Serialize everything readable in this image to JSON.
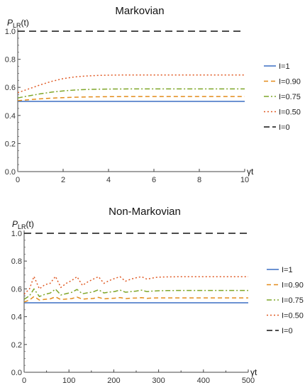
{
  "chart_data": [
    {
      "type": "line",
      "title": "Markovian",
      "ylabel": "P",
      "ylabel_sub": "LR",
      "ylabel_suffix": "(t)",
      "xlabel": "γt",
      "xlim": [
        0,
        10
      ],
      "ylim": [
        0,
        1.0
      ],
      "xticks": [
        0,
        2,
        4,
        6,
        8,
        10
      ],
      "xtick_labels": [
        "0",
        "2",
        "4",
        "6",
        "8",
        "10"
      ],
      "yticks": [
        0,
        0.2,
        0.4,
        0.6,
        0.8,
        1.0
      ],
      "ytick_labels": [
        "0.0",
        "0.2",
        "0.4",
        "0.6",
        "0.8",
        "1.0"
      ],
      "legend": "right",
      "series": [
        {
          "name": "I=1",
          "color": "#3b6fc4",
          "dash": "solid",
          "x": [
            0,
            1,
            2,
            3,
            4,
            5,
            6,
            7,
            8,
            9,
            10
          ],
          "values": [
            0.5,
            0.5,
            0.5,
            0.5,
            0.5,
            0.5,
            0.5,
            0.5,
            0.5,
            0.5,
            0.5
          ]
        },
        {
          "name": "I=0.90",
          "color": "#e38c1b",
          "dash": "dash",
          "x": [
            0,
            0.5,
            1,
            1.5,
            2,
            2.5,
            3,
            3.5,
            4,
            5,
            6,
            7,
            8,
            9,
            10
          ],
          "values": [
            0.505,
            0.512,
            0.518,
            0.523,
            0.527,
            0.53,
            0.532,
            0.533,
            0.534,
            0.535,
            0.535,
            0.535,
            0.535,
            0.535,
            0.535
          ]
        },
        {
          "name": "I=0.75",
          "color": "#7fa62a",
          "dash": "dashdot",
          "x": [
            0,
            0.5,
            1,
            1.5,
            2,
            2.5,
            3,
            3.5,
            4,
            5,
            6,
            7,
            8,
            9,
            10
          ],
          "values": [
            0.525,
            0.54,
            0.554,
            0.566,
            0.575,
            0.581,
            0.585,
            0.587,
            0.588,
            0.589,
            0.589,
            0.589,
            0.589,
            0.589,
            0.589
          ]
        },
        {
          "name": "I=0.50",
          "color": "#e05a24",
          "dash": "dot",
          "x": [
            0,
            0.5,
            1,
            1.5,
            2,
            2.5,
            3,
            3.5,
            4,
            4.5,
            5,
            6,
            7,
            8,
            9,
            10
          ],
          "values": [
            0.562,
            0.59,
            0.618,
            0.643,
            0.662,
            0.674,
            0.681,
            0.685,
            0.687,
            0.688,
            0.688,
            0.688,
            0.688,
            0.688,
            0.688,
            0.688
          ]
        },
        {
          "name": "I=0",
          "color": "#111111",
          "dash": "longdash",
          "x": [
            0,
            10
          ],
          "values": [
            1.0,
            1.0
          ]
        }
      ]
    },
    {
      "type": "line",
      "title": "Non-Markovian",
      "ylabel": "P",
      "ylabel_sub": "LR",
      "ylabel_suffix": "(t)",
      "xlabel": "γt",
      "xlim": [
        0,
        500
      ],
      "ylim": [
        0,
        1.0
      ],
      "xticks": [
        0,
        50,
        100,
        150,
        200,
        250,
        300,
        350,
        400,
        450,
        500
      ],
      "xtick_labels": [
        "0",
        "",
        "100",
        "",
        "200",
        "",
        "300",
        "",
        "400",
        "",
        "500"
      ],
      "yticks": [
        0,
        0.2,
        0.4,
        0.6,
        0.8,
        1.0
      ],
      "ytick_labels": [
        "0.0",
        "0.2",
        "0.4",
        "0.6",
        "0.8",
        "1.0"
      ],
      "legend": "right",
      "series": [
        {
          "name": "I=1",
          "color": "#3b6fc4",
          "dash": "solid",
          "x": [
            0,
            100,
            200,
            300,
            400,
            500
          ],
          "values": [
            0.5,
            0.5,
            0.5,
            0.5,
            0.5,
            0.5
          ]
        },
        {
          "name": "I=0.90",
          "color": "#e38c1b",
          "dash": "dash",
          "x": [
            0,
            12,
            22,
            34,
            46,
            58,
            70,
            82,
            94,
            106,
            118,
            130,
            142,
            154,
            166,
            178,
            190,
            202,
            214,
            226,
            238,
            250,
            262,
            274,
            286,
            298,
            320,
            350,
            380,
            410,
            440,
            470,
            500
          ],
          "values": [
            0.505,
            0.52,
            0.545,
            0.52,
            0.525,
            0.528,
            0.543,
            0.523,
            0.527,
            0.53,
            0.541,
            0.526,
            0.529,
            0.531,
            0.539,
            0.528,
            0.531,
            0.533,
            0.538,
            0.53,
            0.533,
            0.534,
            0.537,
            0.532,
            0.534,
            0.535,
            0.535,
            0.535,
            0.535,
            0.535,
            0.535,
            0.535,
            0.535
          ]
        },
        {
          "name": "I=0.75",
          "color": "#7fa62a",
          "dash": "dashdot",
          "x": [
            0,
            12,
            22,
            34,
            46,
            58,
            70,
            82,
            94,
            106,
            118,
            130,
            142,
            154,
            166,
            178,
            190,
            202,
            214,
            226,
            238,
            250,
            262,
            274,
            286,
            298,
            320,
            350,
            380,
            410,
            440,
            470,
            500
          ],
          "values": [
            0.525,
            0.55,
            0.6,
            0.545,
            0.56,
            0.57,
            0.598,
            0.556,
            0.566,
            0.575,
            0.596,
            0.565,
            0.572,
            0.578,
            0.594,
            0.571,
            0.577,
            0.581,
            0.592,
            0.576,
            0.58,
            0.584,
            0.591,
            0.58,
            0.584,
            0.586,
            0.588,
            0.589,
            0.589,
            0.589,
            0.589,
            0.589,
            0.589
          ]
        },
        {
          "name": "I=0.50",
          "color": "#e05a24",
          "dash": "dot",
          "x": [
            0,
            12,
            22,
            34,
            46,
            58,
            70,
            82,
            94,
            106,
            118,
            130,
            142,
            154,
            166,
            178,
            190,
            202,
            214,
            226,
            238,
            250,
            262,
            274,
            286,
            298,
            320,
            350,
            380,
            410,
            440,
            470,
            500
          ],
          "values": [
            0.562,
            0.6,
            0.69,
            0.6,
            0.63,
            0.64,
            0.69,
            0.61,
            0.64,
            0.66,
            0.688,
            0.625,
            0.65,
            0.67,
            0.688,
            0.64,
            0.66,
            0.675,
            0.688,
            0.655,
            0.67,
            0.68,
            0.688,
            0.67,
            0.678,
            0.684,
            0.686,
            0.688,
            0.688,
            0.688,
            0.688,
            0.688,
            0.688
          ]
        },
        {
          "name": "I=0",
          "color": "#111111",
          "dash": "longdash",
          "x": [
            0,
            500
          ],
          "values": [
            1.0,
            1.0
          ]
        }
      ]
    }
  ]
}
